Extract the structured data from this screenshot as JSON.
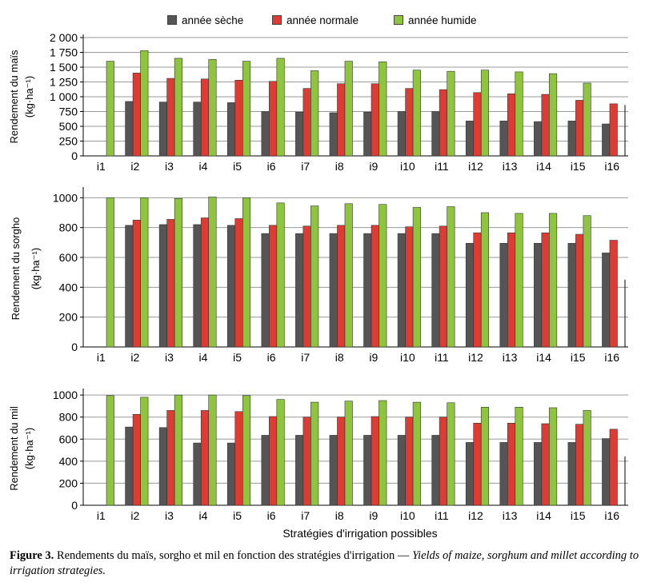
{
  "legend": [
    {
      "label": "année sèche",
      "color": "#555555"
    },
    {
      "label": "année normale",
      "color": "#dd3b33"
    },
    {
      "label": "année humide",
      "color": "#8fc43f"
    }
  ],
  "xlabel": "Stratégies d'irrigation possibles",
  "caption": {
    "figure": "Figure 3.",
    "french": " Rendements du maïs, sorgho et mil en fonction des stratégies d'irrigation — ",
    "english": "Yields of maize, sorghum and millet according to irrigation strategies."
  },
  "chart_data": [
    {
      "type": "bar",
      "ylabel": [
        "Rendement du maïs",
        "(kg·ha⁻¹)"
      ],
      "ylim": [
        0,
        2000
      ],
      "yticks": [
        "0",
        "250",
        "500",
        "750",
        "1 000",
        "1 250",
        "1 500",
        "1 750",
        "2 000"
      ],
      "categories": [
        "i1",
        "i2",
        "i3",
        "i4",
        "i5",
        "i6",
        "i7",
        "i8",
        "i9",
        "i10",
        "i11",
        "i12",
        "i13",
        "i14",
        "i15",
        "i16"
      ],
      "series": [
        {
          "name": "année sèche",
          "values": [
            0,
            920,
            910,
            910,
            900,
            750,
            740,
            730,
            740,
            750,
            750,
            590,
            590,
            580,
            590,
            540
          ]
        },
        {
          "name": "année normale",
          "values": [
            0,
            1400,
            1310,
            1300,
            1280,
            1260,
            1140,
            1220,
            1220,
            1140,
            1120,
            1070,
            1050,
            1040,
            940,
            880
          ]
        },
        {
          "name": "année humide",
          "values": [
            1600,
            1780,
            1650,
            1630,
            1600,
            1650,
            1440,
            1600,
            1590,
            1450,
            1430,
            1450,
            1420,
            1390,
            1230,
            null
          ]
        }
      ]
    },
    {
      "type": "bar",
      "ylabel": [
        "Rendement du sorgho",
        "(kg·ha⁻¹)"
      ],
      "ylim": [
        0,
        1050
      ],
      "yticks": [
        "0",
        "200",
        "400",
        "600",
        "800",
        "1000"
      ],
      "categories": [
        "i1",
        "i2",
        "i3",
        "i4",
        "i5",
        "i6",
        "i7",
        "i8",
        "i9",
        "i10",
        "i11",
        "i12",
        "i13",
        "i14",
        "i15",
        "i16"
      ],
      "series": [
        {
          "name": "année sèche",
          "values": [
            0,
            815,
            820,
            820,
            815,
            760,
            760,
            760,
            760,
            760,
            760,
            695,
            695,
            695,
            695,
            630
          ]
        },
        {
          "name": "année normale",
          "values": [
            0,
            850,
            855,
            865,
            860,
            815,
            810,
            815,
            815,
            805,
            810,
            765,
            765,
            765,
            755,
            715
          ]
        },
        {
          "name": "année humide",
          "values": [
            1000,
            1000,
            995,
            1005,
            1000,
            965,
            945,
            960,
            955,
            935,
            940,
            900,
            895,
            895,
            880,
            null
          ]
        }
      ]
    },
    {
      "type": "bar",
      "ylabel": [
        "Rendement du mil",
        "(kg·ha⁻¹)"
      ],
      "ylim": [
        0,
        1030
      ],
      "yticks": [
        "0",
        "200",
        "400",
        "600",
        "800",
        "1000"
      ],
      "categories": [
        "i1",
        "i2",
        "i3",
        "i4",
        "i5",
        "i6",
        "i7",
        "i8",
        "i9",
        "i10",
        "i11",
        "i12",
        "i13",
        "i14",
        "i15",
        "i16"
      ],
      "series": [
        {
          "name": "année sèche",
          "values": [
            0,
            710,
            705,
            565,
            565,
            635,
            635,
            635,
            635,
            635,
            635,
            570,
            570,
            570,
            570,
            605
          ]
        },
        {
          "name": "année normale",
          "values": [
            0,
            825,
            860,
            860,
            850,
            805,
            800,
            800,
            805,
            800,
            800,
            745,
            745,
            740,
            735,
            690
          ]
        },
        {
          "name": "année humide",
          "values": [
            995,
            980,
            1000,
            1000,
            995,
            960,
            935,
            945,
            950,
            935,
            930,
            890,
            890,
            885,
            860,
            null
          ]
        }
      ]
    }
  ]
}
